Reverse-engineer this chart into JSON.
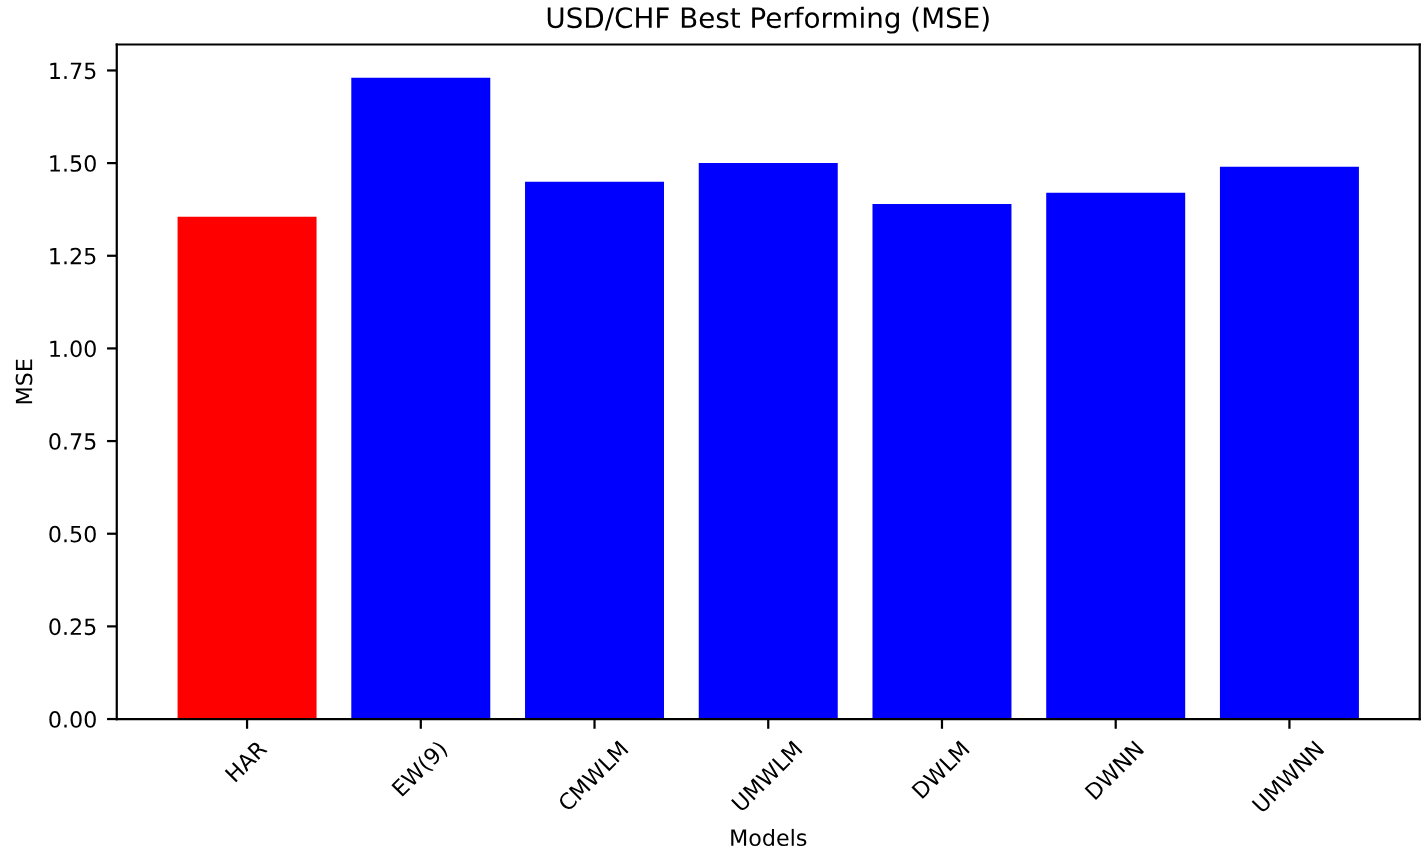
{
  "chart_data": {
    "type": "bar",
    "title": "USD/CHF Best Performing (MSE)",
    "xlabel": "Models",
    "ylabel": "MSE",
    "categories": [
      "HAR",
      "EW(9)",
      "CMWLM",
      "UMWLM",
      "DWLM",
      "DWNN",
      "UMWNN"
    ],
    "values": [
      1.355,
      1.73,
      1.45,
      1.5,
      1.39,
      1.42,
      1.49
    ],
    "colors": [
      "#ff0000",
      "#0000ff",
      "#0000ff",
      "#0000ff",
      "#0000ff",
      "#0000ff",
      "#0000ff"
    ],
    "ylim": [
      0,
      1.82
    ],
    "yticks": [
      {
        "value": 0,
        "label": "0.00"
      },
      {
        "value": 0.25,
        "label": "0.25"
      },
      {
        "value": 0.5,
        "label": "0.50"
      },
      {
        "value": 0.75,
        "label": "0.75"
      },
      {
        "value": 1.0,
        "label": "1.00"
      },
      {
        "value": 1.25,
        "label": "1.25"
      },
      {
        "value": 1.5,
        "label": "1.50"
      },
      {
        "value": 1.75,
        "label": "1.75"
      }
    ]
  }
}
